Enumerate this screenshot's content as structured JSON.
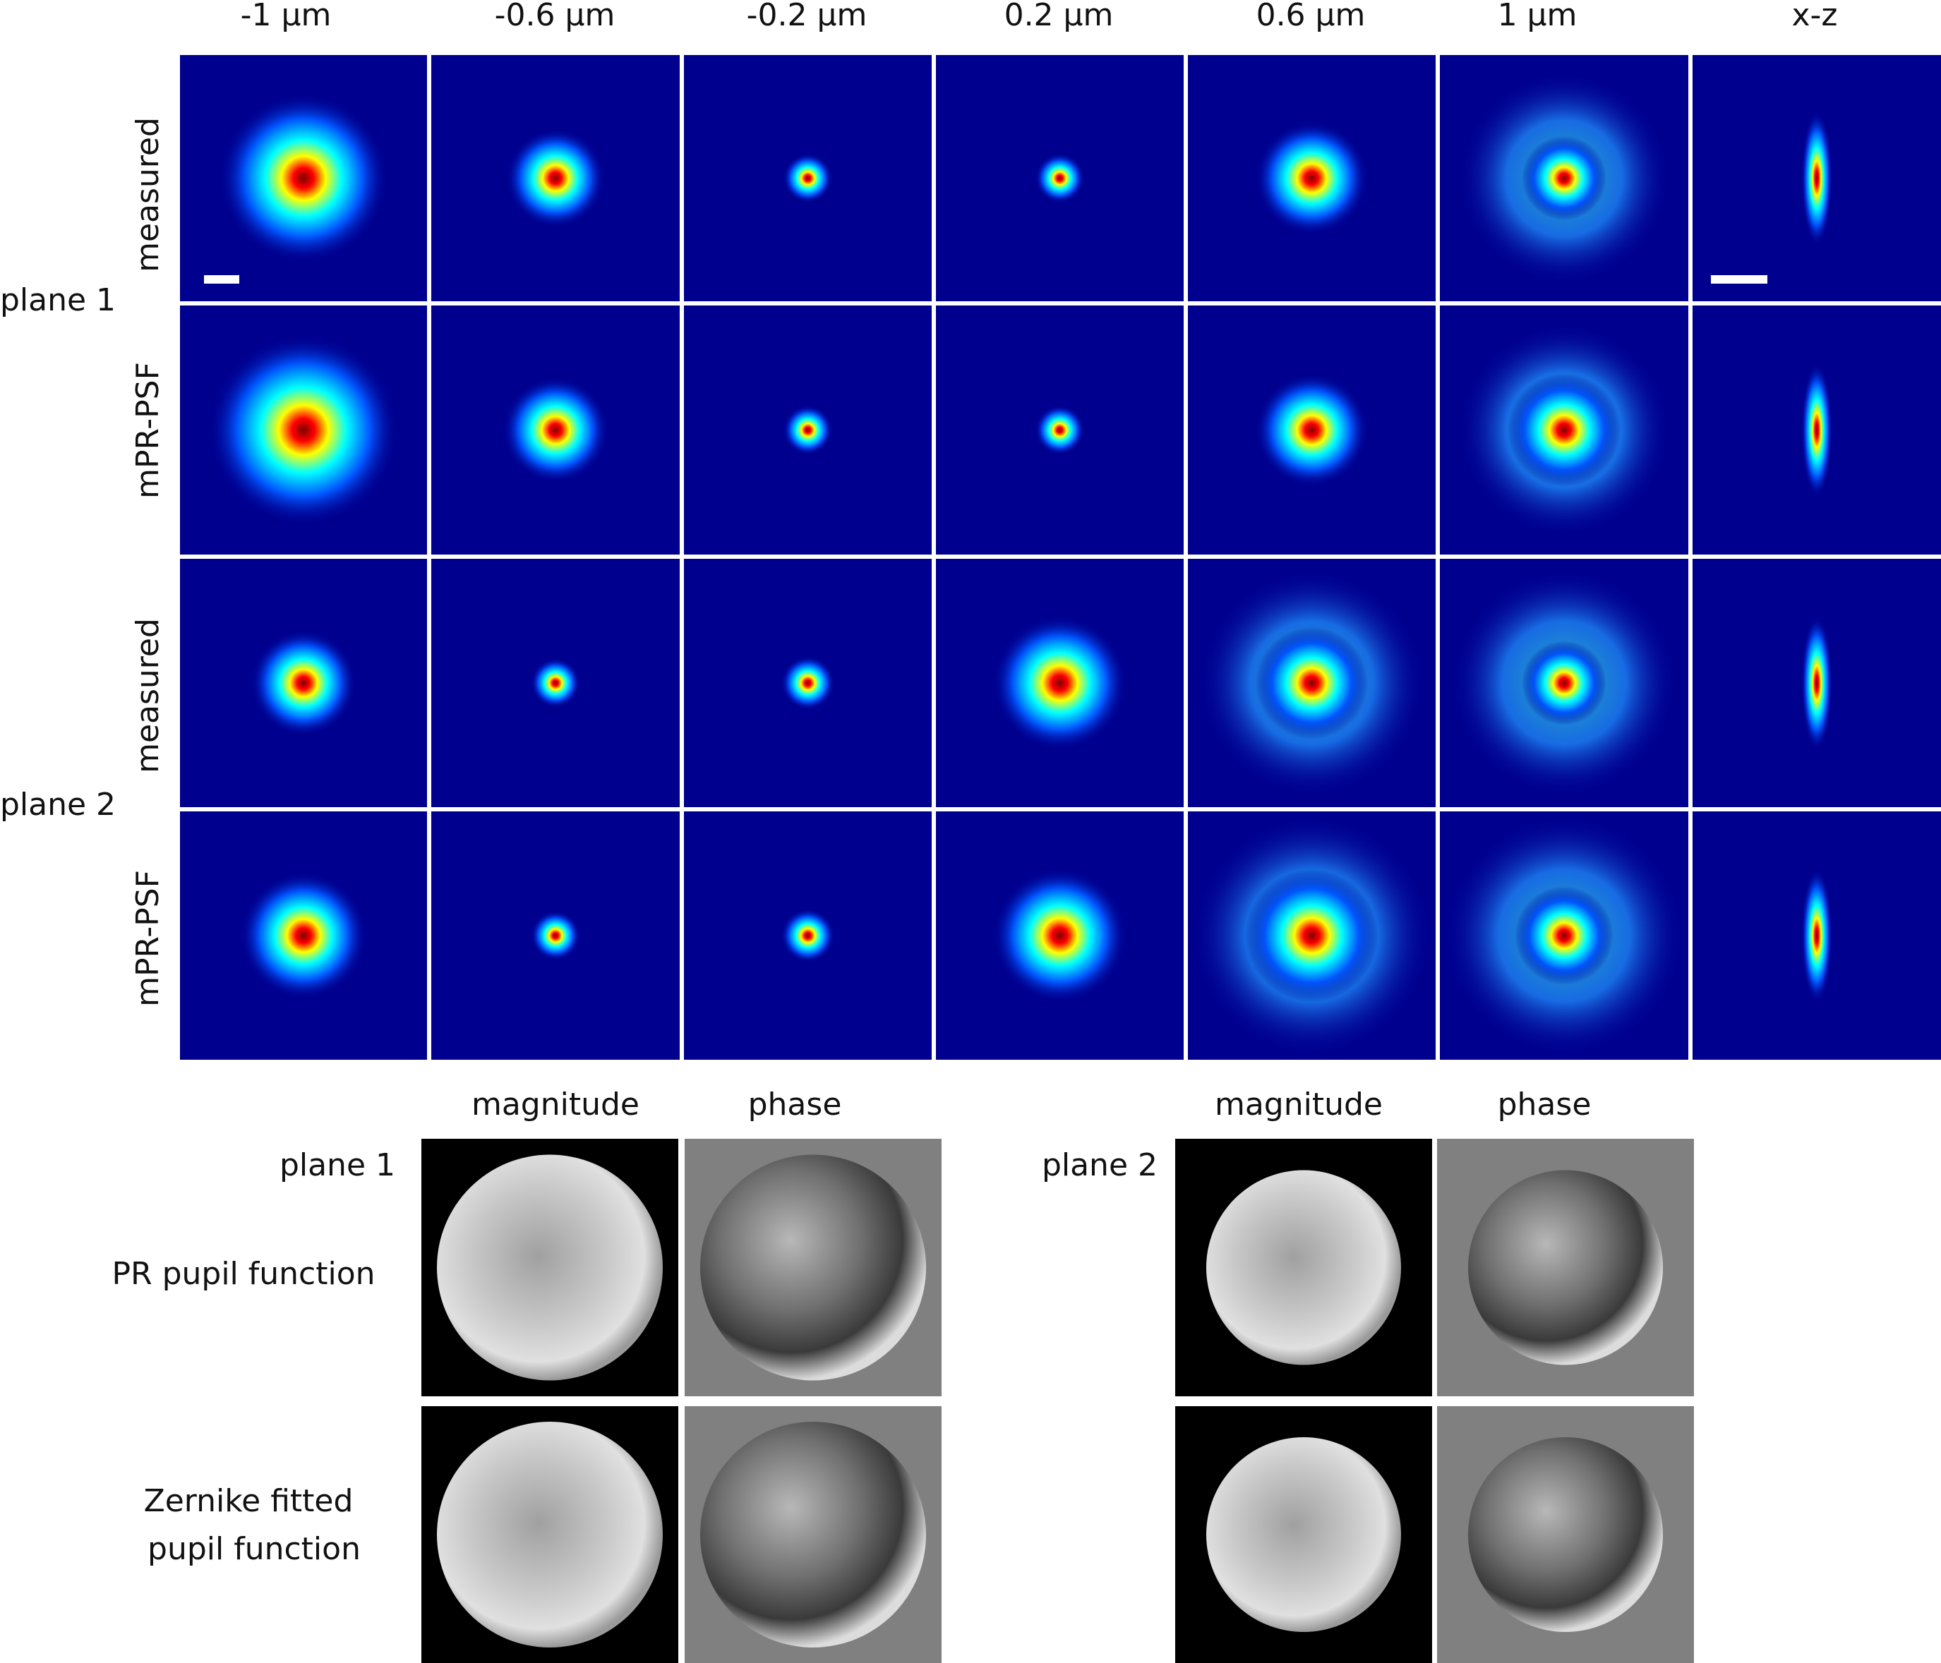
{
  "columns": [
    "-1 µm",
    "-0.6 µm",
    "-0.2 µm",
    "0.2 µm",
    "0.6 µm",
    "1 µm",
    "x-z"
  ],
  "planes": [
    {
      "label": "plane 1",
      "rows": [
        "measured",
        "mPR-PSF"
      ]
    },
    {
      "label": "plane 2",
      "rows": [
        "measured",
        "mPR-PSF"
      ]
    }
  ],
  "pupil": {
    "groups": [
      {
        "label": "plane 1",
        "col_labels": [
          "magnitude",
          "phase"
        ]
      },
      {
        "label": "plane 2",
        "col_labels": [
          "magnitude",
          "phase"
        ]
      }
    ],
    "row_label_1": "PR pupil function",
    "row_label_2_line1": "Zernike fitted",
    "row_label_2_line2": "pupil function"
  },
  "colors": {
    "background_dark_blue": "#00008f",
    "separator": "#ffffff",
    "pupil_outer_magnitude": "#000000",
    "pupil_outer_phase": "#808080"
  }
}
